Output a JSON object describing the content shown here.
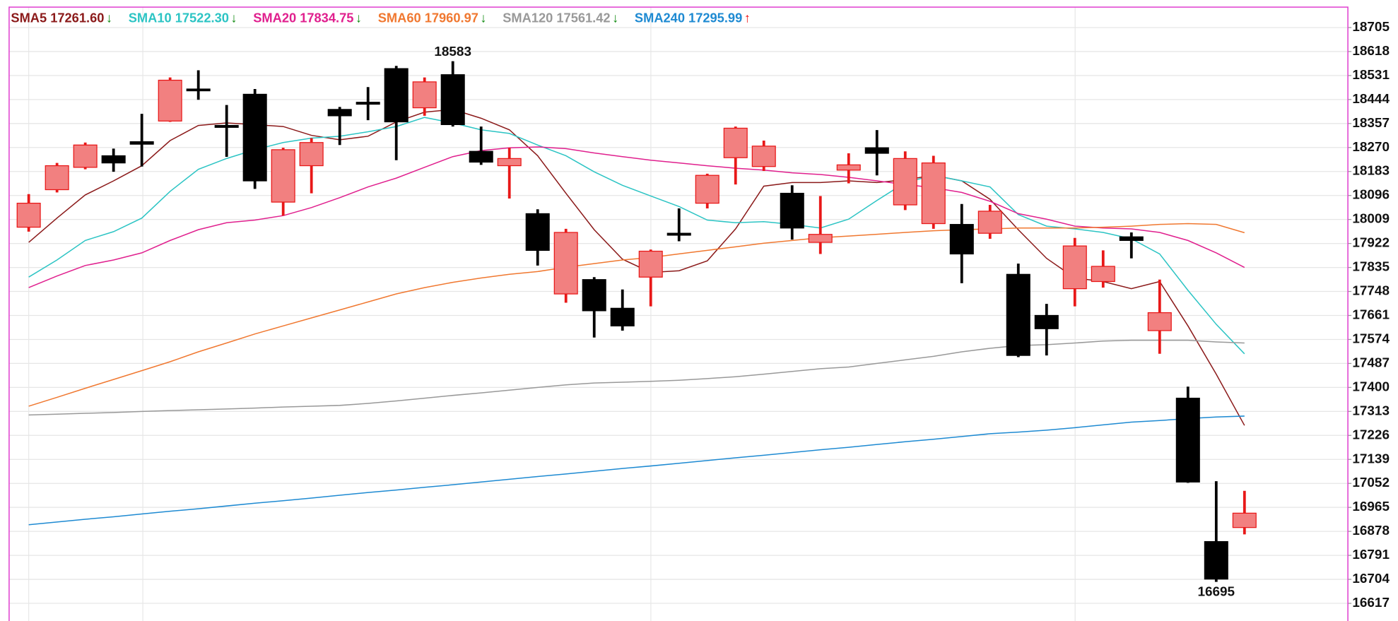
{
  "chart_data": {
    "type": "candlestick",
    "ylim": [
      16553,
      18779
    ],
    "yticks": [
      18705,
      18618,
      18531,
      18444,
      18357,
      18270,
      18183,
      18096,
      18009,
      17922,
      17835,
      17748,
      17661,
      17574,
      17487,
      17400,
      17313,
      17226,
      17139,
      17052,
      16965,
      16878,
      16791,
      16704,
      16617
    ],
    "grid": true,
    "up_color": "#f28080",
    "up_edge": "#e81818",
    "down_color": "#000000",
    "trend_colors": {
      "↓": "#108a10",
      "↑": "#ee1010"
    },
    "max_label": "18583",
    "min_label": "16695",
    "candles": {
      "open": [
        17981,
        18117,
        18198,
        18240,
        18291,
        18366,
        18482,
        18350,
        18463,
        18072,
        18204,
        18408,
        18434,
        18556,
        18414,
        18534,
        18256,
        18204,
        18030,
        17739,
        17791,
        17687,
        17800,
        17959,
        18068,
        18233,
        18201,
        18104,
        17926,
        18188,
        18269,
        18062,
        17994,
        17991,
        17959,
        17810,
        17661,
        17758,
        17784,
        17946,
        17606,
        17361,
        16841,
        16892
      ],
      "high": [
        18101,
        18214,
        18288,
        18266,
        18392,
        18524,
        18550,
        18424,
        18482,
        18269,
        18304,
        18417,
        18489,
        18566,
        18524,
        18583,
        18346,
        18269,
        18046,
        17975,
        17800,
        17755,
        17900,
        18049,
        18175,
        18346,
        18295,
        18133,
        18094,
        18249,
        18333,
        18256,
        18240,
        18065,
        18062,
        17849,
        17703,
        17942,
        17897,
        17962,
        17791,
        17403,
        17060,
        17025
      ],
      "low": [
        17965,
        18107,
        18191,
        18182,
        18201,
        18363,
        18443,
        18236,
        18120,
        18023,
        18104,
        18279,
        18369,
        18224,
        18385,
        18346,
        18207,
        18085,
        17842,
        17707,
        17581,
        17606,
        17694,
        17930,
        18049,
        18136,
        18185,
        17936,
        17884,
        18140,
        18169,
        18043,
        17975,
        17778,
        17939,
        17510,
        17516,
        17694,
        17762,
        17868,
        17522,
        17054,
        16695,
        16867
      ],
      "close": [
        18068,
        18204,
        18279,
        18214,
        18282,
        18514,
        18479,
        18343,
        18149,
        18262,
        18288,
        18385,
        18427,
        18363,
        18508,
        18353,
        18217,
        18230,
        17897,
        17962,
        17678,
        17623,
        17894,
        17952,
        18169,
        18340,
        18275,
        17978,
        17955,
        18207,
        18249,
        18230,
        18214,
        17884,
        18039,
        17516,
        17613,
        17913,
        17839,
        17933,
        17671,
        17057,
        16705,
        16944
      ]
    },
    "series": [
      {
        "name": "SMA5",
        "latest": "17261.60",
        "trend": "↓",
        "color": "#8b1a1a",
        "values": [
          17926,
          18014,
          18098,
          18149,
          18204,
          18295,
          18350,
          18359,
          18353,
          18346,
          18314,
          18298,
          18311,
          18363,
          18398,
          18408,
          18376,
          18334,
          18240,
          18104,
          17972,
          17865,
          17817,
          17823,
          17859,
          17975,
          18130,
          18143,
          18143,
          18149,
          18143,
          18153,
          18169,
          18149,
          18082,
          17972,
          17868,
          17797,
          17784,
          17758,
          17784,
          17623,
          17448,
          17262
        ]
      },
      {
        "name": "SMA10",
        "latest": "17522.30",
        "trend": "↓",
        "color": "#2cc4c4",
        "values": [
          17800,
          17862,
          17933,
          17965,
          18014,
          18111,
          18191,
          18230,
          18262,
          18288,
          18304,
          18311,
          18327,
          18346,
          18379,
          18359,
          18334,
          18321,
          18279,
          18240,
          18182,
          18133,
          18094,
          18056,
          18007,
          17997,
          18001,
          17991,
          17978,
          18010,
          18078,
          18143,
          18169,
          18149,
          18127,
          18027,
          17985,
          17975,
          17962,
          17939,
          17884,
          17752,
          17629,
          17522
        ]
      },
      {
        "name": "SMA20",
        "latest": "17834.75",
        "trend": "↓",
        "color": "#e0208e",
        "values": [
          17762,
          17804,
          17842,
          17862,
          17888,
          17933,
          17972,
          17997,
          18007,
          18023,
          18052,
          18088,
          18127,
          18159,
          18198,
          18237,
          18259,
          18269,
          18272,
          18266,
          18250,
          18237,
          18224,
          18214,
          18204,
          18195,
          18188,
          18178,
          18172,
          18162,
          18149,
          18136,
          18124,
          18107,
          18075,
          18030,
          18010,
          17985,
          17978,
          17975,
          17962,
          17933,
          17888,
          17835
        ]
      },
      {
        "name": "SMA60",
        "latest": "17960.97",
        "trend": "↓",
        "color": "#f07830",
        "values": [
          17332,
          17364,
          17397,
          17429,
          17461,
          17493,
          17529,
          17561,
          17594,
          17623,
          17652,
          17681,
          17710,
          17739,
          17762,
          17781,
          17797,
          17810,
          17820,
          17836,
          17849,
          17862,
          17871,
          17884,
          17897,
          17910,
          17923,
          17933,
          17943,
          17949,
          17955,
          17962,
          17968,
          17972,
          17975,
          17978,
          17978,
          17978,
          17981,
          17985,
          17991,
          17994,
          17991,
          17961
        ]
      },
      {
        "name": "SMA120",
        "latest": "17561.42",
        "trend": "↓",
        "color": "#999999",
        "values": [
          17300,
          17303,
          17306,
          17309,
          17313,
          17316,
          17319,
          17322,
          17325,
          17329,
          17332,
          17335,
          17342,
          17351,
          17361,
          17371,
          17380,
          17390,
          17400,
          17409,
          17416,
          17419,
          17422,
          17426,
          17432,
          17439,
          17448,
          17458,
          17468,
          17474,
          17487,
          17500,
          17513,
          17529,
          17542,
          17552,
          17555,
          17561,
          17568,
          17571,
          17571,
          17571,
          17565,
          17561
        ]
      },
      {
        "name": "SMA240",
        "latest": "17295.99",
        "trend": "↑",
        "color": "#1e8ad2",
        "values": [
          16902,
          16912,
          16922,
          16931,
          16941,
          16951,
          16960,
          16970,
          16980,
          16989,
          16999,
          17009,
          17019,
          17028,
          17038,
          17047,
          17057,
          17067,
          17077,
          17086,
          17096,
          17106,
          17115,
          17125,
          17135,
          17145,
          17154,
          17164,
          17174,
          17183,
          17193,
          17203,
          17212,
          17222,
          17232,
          17238,
          17245,
          17254,
          17264,
          17274,
          17280,
          17287,
          17293,
          17296
        ]
      }
    ]
  }
}
